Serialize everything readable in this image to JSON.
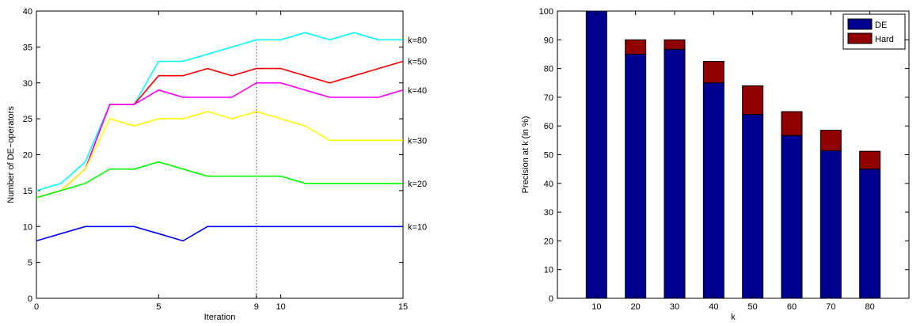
{
  "chart_data": [
    {
      "type": "line",
      "title": "",
      "xlabel": "Iteration",
      "ylabel": "Number of DE−operators",
      "xlim": [
        0,
        15
      ],
      "ylim": [
        0,
        40
      ],
      "xticks": [
        0,
        5,
        9,
        10,
        15
      ],
      "yticks": [
        0,
        5,
        10,
        15,
        20,
        25,
        30,
        35,
        40
      ],
      "vline": {
        "x": 9,
        "style": "dotted"
      },
      "grid": false,
      "x": [
        0,
        1,
        2,
        3,
        4,
        5,
        6,
        7,
        8,
        9,
        10,
        11,
        12,
        13,
        14,
        15
      ],
      "series": [
        {
          "label": "k=80",
          "color": "#00ffff",
          "values": [
            15,
            16,
            19,
            27,
            27,
            33,
            33,
            34,
            35,
            36,
            36,
            37,
            36,
            37,
            36,
            36
          ]
        },
        {
          "label": "k=50",
          "color": "#ff0000",
          "values": [
            14,
            15,
            18,
            27,
            27,
            31,
            31,
            32,
            31,
            32,
            32,
            31,
            30,
            31,
            32,
            33
          ]
        },
        {
          "label": "k=40",
          "color": "#ff00ff",
          "values": [
            14,
            15,
            18,
            27,
            27,
            29,
            28,
            28,
            28,
            30,
            30,
            29,
            28,
            28,
            28,
            29
          ]
        },
        {
          "label": "k=30",
          "color": "#ffff00",
          "values": [
            14,
            15,
            18,
            25,
            24,
            25,
            25,
            26,
            25,
            26,
            25,
            24,
            22,
            22,
            22,
            22
          ]
        },
        {
          "label": "k=20",
          "color": "#00ff00",
          "values": [
            14,
            15,
            16,
            18,
            18,
            19,
            18,
            17,
            17,
            17,
            17,
            16,
            16,
            16,
            16,
            16
          ]
        },
        {
          "label": "k=10",
          "color": "#0000ff",
          "values": [
            8,
            9,
            10,
            10,
            10,
            9,
            8,
            10,
            10,
            10,
            10,
            10,
            10,
            10,
            10,
            10
          ]
        }
      ]
    },
    {
      "type": "bar",
      "stacked": true,
      "title": "",
      "xlabel": "k",
      "ylabel": "Precision at k (in %)",
      "ylim": [
        0,
        100
      ],
      "yticks": [
        0,
        10,
        20,
        30,
        40,
        50,
        60,
        70,
        80,
        90,
        100
      ],
      "categories": [
        "10",
        "20",
        "30",
        "40",
        "50",
        "60",
        "70",
        "80"
      ],
      "legend_position": "top-right",
      "series": [
        {
          "name": "DE",
          "color": "#000090",
          "values": [
            100,
            85,
            86.7,
            75,
            64,
            56.7,
            51.4,
            45
          ]
        },
        {
          "name": "Hard",
          "color": "#900000",
          "values": [
            0,
            5,
            3.3,
            7.5,
            10,
            8.3,
            7.1,
            6.2
          ]
        }
      ]
    }
  ]
}
